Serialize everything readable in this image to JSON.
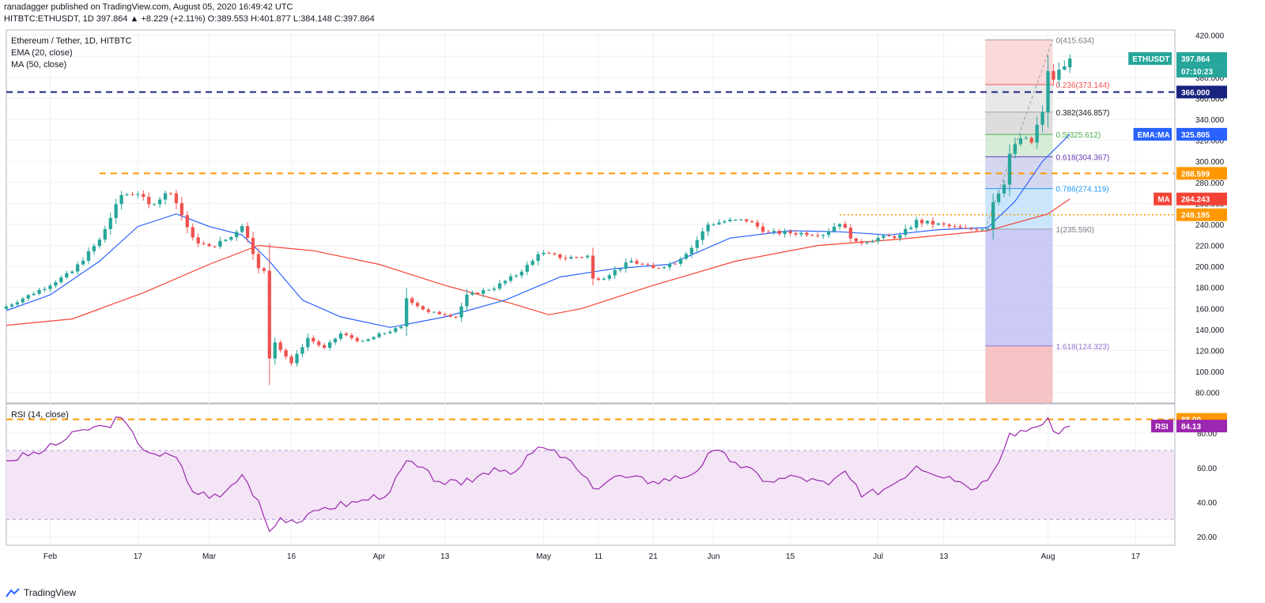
{
  "header": {
    "line1": "ranadagger published on TradingView.com, August 05, 2020 16:49:42 UTC",
    "line2": "HITBTC:ETHUSDT, 1D  397.864  ▲ +8.229 (+2.11%) O:389.553 H:401.877 L:384.148 C:397.864"
  },
  "brand": "TradingView",
  "colors": {
    "up": "#26a69a",
    "down": "#ef5350",
    "ema": "#2962ff",
    "ma": "#f44336",
    "level": "#ff9800",
    "level_blue": "#1a237e",
    "rsi": "#9c27b0",
    "rsi_band": "#f3e5f5"
  },
  "chart_data": [
    {
      "type": "candlestick",
      "legend": [
        "Ethereum / Tether, 1D, HITBTC",
        "EMA (20, close)",
        "MA (50, close)"
      ],
      "ylim": [
        70,
        425
      ],
      "y_ticks": [
        80,
        100,
        120,
        140,
        160,
        180,
        200,
        220,
        240,
        260,
        280,
        300,
        320,
        340,
        360,
        380,
        400,
        420
      ],
      "x_range": [
        "2020-01-24",
        "2020-08-24"
      ],
      "x_ticks": [
        {
          "date": "2020-02-01",
          "label": "Feb"
        },
        {
          "date": "2020-02-17",
          "label": "17"
        },
        {
          "date": "2020-03-01",
          "label": "Mar"
        },
        {
          "date": "2020-03-16",
          "label": "16"
        },
        {
          "date": "2020-04-01",
          "label": "Apr"
        },
        {
          "date": "2020-04-13",
          "label": "13"
        },
        {
          "date": "2020-05-01",
          "label": "May"
        },
        {
          "date": "2020-05-11",
          "label": "11"
        },
        {
          "date": "2020-05-21",
          "label": "21"
        },
        {
          "date": "2020-06-01",
          "label": "Jun"
        },
        {
          "date": "2020-06-15",
          "label": "15"
        },
        {
          "date": "2020-07-01",
          "label": "Jul"
        },
        {
          "date": "2020-07-13",
          "label": "13"
        },
        {
          "date": "2020-08-01",
          "label": "Aug"
        },
        {
          "date": "2020-08-17",
          "label": "17"
        }
      ],
      "close_anchors": [
        [
          "2020-01-24",
          162
        ],
        [
          "2020-01-31",
          180
        ],
        [
          "2020-02-05",
          195
        ],
        [
          "2020-02-10",
          225
        ],
        [
          "2020-02-14",
          268
        ],
        [
          "2020-02-17",
          270
        ],
        [
          "2020-02-19",
          258
        ],
        [
          "2020-02-23",
          272
        ],
        [
          "2020-02-27",
          226
        ],
        [
          "2020-03-01",
          218
        ],
        [
          "2020-03-05",
          228
        ],
        [
          "2020-03-07",
          240
        ],
        [
          "2020-03-10",
          200
        ],
        [
          "2020-03-11",
          195
        ],
        [
          "2020-03-12",
          112
        ],
        [
          "2020-03-13",
          128
        ],
        [
          "2020-03-16",
          108
        ],
        [
          "2020-03-19",
          132
        ],
        [
          "2020-03-22",
          122
        ],
        [
          "2020-03-25",
          136
        ],
        [
          "2020-03-29",
          128
        ],
        [
          "2020-04-01",
          135
        ],
        [
          "2020-04-05",
          142
        ],
        [
          "2020-04-06",
          170
        ],
        [
          "2020-04-10",
          156
        ],
        [
          "2020-04-13",
          155
        ],
        [
          "2020-04-15",
          152
        ],
        [
          "2020-04-17",
          172
        ],
        [
          "2020-04-22",
          180
        ],
        [
          "2020-04-26",
          192
        ],
        [
          "2020-04-29",
          205
        ],
        [
          "2020-04-30",
          213
        ],
        [
          "2020-05-05",
          208
        ],
        [
          "2020-05-09",
          210
        ],
        [
          "2020-05-10",
          188
        ],
        [
          "2020-05-12",
          190
        ],
        [
          "2020-05-17",
          205
        ],
        [
          "2020-05-21",
          198
        ],
        [
          "2020-05-25",
          204
        ],
        [
          "2020-05-28",
          218
        ],
        [
          "2020-05-31",
          240
        ],
        [
          "2020-06-03",
          243
        ],
        [
          "2020-06-07",
          244
        ],
        [
          "2020-06-11",
          232
        ],
        [
          "2020-06-15",
          232
        ],
        [
          "2020-06-21",
          231
        ],
        [
          "2020-06-24",
          242
        ],
        [
          "2020-06-27",
          222
        ],
        [
          "2020-07-01",
          227
        ],
        [
          "2020-07-05",
          229
        ],
        [
          "2020-07-08",
          243
        ],
        [
          "2020-07-13",
          239
        ],
        [
          "2020-07-17",
          235
        ],
        [
          "2020-07-21",
          237
        ],
        [
          "2020-07-22",
          262
        ],
        [
          "2020-07-24",
          280
        ],
        [
          "2020-07-25",
          307
        ],
        [
          "2020-07-27",
          322
        ],
        [
          "2020-07-29",
          318
        ],
        [
          "2020-07-30",
          334
        ],
        [
          "2020-07-31",
          345
        ],
        [
          "2020-08-01",
          387
        ],
        [
          "2020-08-02",
          376
        ],
        [
          "2020-08-03",
          388
        ],
        [
          "2020-08-04",
          389
        ],
        [
          "2020-08-05",
          397.864
        ]
      ],
      "last_candle": {
        "open": 389.553,
        "high": 401.877,
        "low": 384.148,
        "close": 397.864
      },
      "ema20": [
        [
          "2020-01-24",
          158
        ],
        [
          "2020-02-01",
          173
        ],
        [
          "2020-02-10",
          205
        ],
        [
          "2020-02-17",
          238
        ],
        [
          "2020-02-24",
          250
        ],
        [
          "2020-03-01",
          238
        ],
        [
          "2020-03-07",
          230
        ],
        [
          "2020-03-12",
          205
        ],
        [
          "2020-03-18",
          168
        ],
        [
          "2020-03-25",
          152
        ],
        [
          "2020-04-03",
          142
        ],
        [
          "2020-04-13",
          152
        ],
        [
          "2020-04-24",
          168
        ],
        [
          "2020-05-04",
          190
        ],
        [
          "2020-05-14",
          198
        ],
        [
          "2020-05-24",
          202
        ],
        [
          "2020-06-04",
          227
        ],
        [
          "2020-06-15",
          234
        ],
        [
          "2020-06-24",
          233
        ],
        [
          "2020-07-03",
          230
        ],
        [
          "2020-07-12",
          235
        ],
        [
          "2020-07-21",
          237
        ],
        [
          "2020-07-26",
          262
        ],
        [
          "2020-07-31",
          300
        ],
        [
          "2020-08-05",
          325.805
        ]
      ],
      "ma50": [
        [
          "2020-01-24",
          144
        ],
        [
          "2020-02-05",
          150
        ],
        [
          "2020-02-18",
          175
        ],
        [
          "2020-03-01",
          202
        ],
        [
          "2020-03-10",
          220
        ],
        [
          "2020-03-20",
          215
        ],
        [
          "2020-04-01",
          202
        ],
        [
          "2020-04-13",
          182
        ],
        [
          "2020-04-25",
          165
        ],
        [
          "2020-05-02",
          154
        ],
        [
          "2020-05-08",
          160
        ],
        [
          "2020-05-21",
          182
        ],
        [
          "2020-06-05",
          205
        ],
        [
          "2020-06-20",
          220
        ],
        [
          "2020-07-05",
          226
        ],
        [
          "2020-07-21",
          234
        ],
        [
          "2020-08-01",
          250
        ],
        [
          "2020-08-05",
          264.243
        ]
      ],
      "levels": [
        {
          "value": 366.0,
          "label": "366.000",
          "style": "blue-dashed"
        },
        {
          "value": 288.599,
          "label": "288.599",
          "style": "orange-dashed",
          "start": "2020-02-10"
        },
        {
          "value": 249.195,
          "label": "249.195",
          "style": "orange-dotted",
          "start": "2020-06-24"
        }
      ],
      "price_tags": [
        {
          "value": 397.864,
          "label": "397.864",
          "name": "ETHUSDT",
          "countdown": "07:10:23"
        },
        {
          "value": 325.805,
          "label": "325.805",
          "name": "EMA:MA"
        },
        {
          "value": 264.243,
          "label": "264.243",
          "name": "MA"
        }
      ],
      "fibonacci": {
        "start": "2020-07-21",
        "end": "2020-08-01",
        "levels": [
          {
            "ratio": 0,
            "value": 415.634,
            "label": "0(415.634)"
          },
          {
            "ratio": 0.236,
            "value": 373.144,
            "label": "0.236(373.144)"
          },
          {
            "ratio": 0.382,
            "value": 346.857,
            "label": "0.382(346.857)"
          },
          {
            "ratio": 0.5,
            "value": 325.612,
            "label": "0.5(325.612)"
          },
          {
            "ratio": 0.618,
            "value": 304.367,
            "label": "0.618(304.367)"
          },
          {
            "ratio": 0.786,
            "value": 274.119,
            "label": "0.786(274.119)"
          },
          {
            "ratio": 1,
            "value": 235.59,
            "label": "1(235.590)"
          },
          {
            "ratio": 1.618,
            "value": 124.323,
            "label": "1.618(124.323)"
          }
        ]
      }
    },
    {
      "type": "line",
      "legend": [
        "RSI (14, close)"
      ],
      "ylim": [
        15,
        97
      ],
      "y_ticks": [
        20,
        40,
        60,
        80
      ],
      "band": [
        30,
        70
      ],
      "levels": [
        {
          "value": 88.0,
          "label": "88.00"
        }
      ],
      "rsi_tag": {
        "name": "RSI",
        "value": 84.13,
        "label": "84.13"
      },
      "series": [
        [
          "2020-01-24",
          64
        ],
        [
          "2020-01-31",
          70
        ],
        [
          "2020-02-07",
          82
        ],
        [
          "2020-02-11",
          84
        ],
        [
          "2020-02-14",
          89
        ],
        [
          "2020-02-17",
          74
        ],
        [
          "2020-02-20",
          68
        ],
        [
          "2020-02-24",
          66
        ],
        [
          "2020-02-27",
          46
        ],
        [
          "2020-03-03",
          43
        ],
        [
          "2020-03-07",
          56
        ],
        [
          "2020-03-10",
          41
        ],
        [
          "2020-03-12",
          23
        ],
        [
          "2020-03-14",
          31
        ],
        [
          "2020-03-18",
          29
        ],
        [
          "2020-03-22",
          37
        ],
        [
          "2020-03-28",
          40
        ],
        [
          "2020-04-03",
          46
        ],
        [
          "2020-04-06",
          64
        ],
        [
          "2020-04-12",
          52
        ],
        [
          "2020-04-16",
          50
        ],
        [
          "2020-04-22",
          60
        ],
        [
          "2020-04-26",
          58
        ],
        [
          "2020-04-30",
          72
        ],
        [
          "2020-05-05",
          66
        ],
        [
          "2020-05-10",
          48
        ],
        [
          "2020-05-14",
          55
        ],
        [
          "2020-05-21",
          52
        ],
        [
          "2020-05-28",
          56
        ],
        [
          "2020-06-01",
          70
        ],
        [
          "2020-06-05",
          63
        ],
        [
          "2020-06-11",
          52
        ],
        [
          "2020-06-16",
          55
        ],
        [
          "2020-06-22",
          50
        ],
        [
          "2020-06-25",
          58
        ],
        [
          "2020-06-28",
          43
        ],
        [
          "2020-07-03",
          49
        ],
        [
          "2020-07-08",
          61
        ],
        [
          "2020-07-14",
          55
        ],
        [
          "2020-07-19",
          48
        ],
        [
          "2020-07-22",
          58
        ],
        [
          "2020-07-25",
          80
        ],
        [
          "2020-07-29",
          83
        ],
        [
          "2020-07-31",
          85
        ],
        [
          "2020-08-01",
          89
        ],
        [
          "2020-08-02",
          81
        ],
        [
          "2020-08-05",
          84.13
        ]
      ]
    }
  ]
}
